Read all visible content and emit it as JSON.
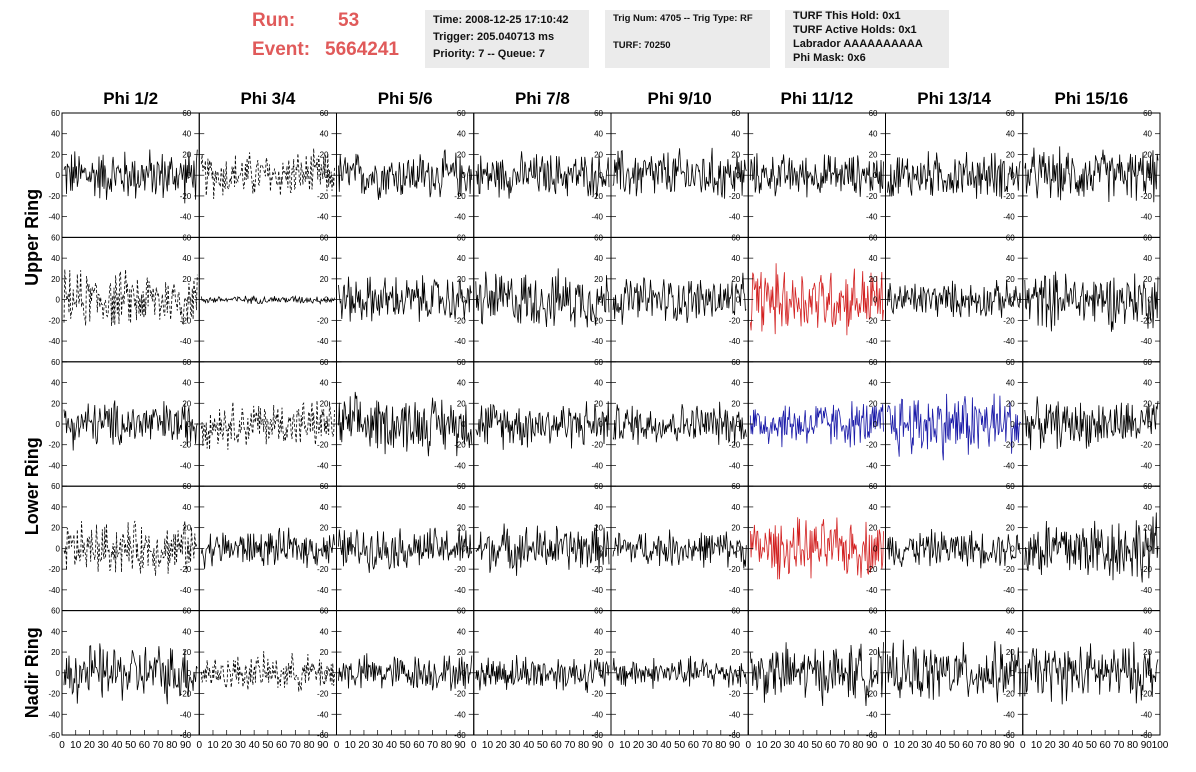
{
  "header": {
    "run_label": "Run:",
    "run_value": "53",
    "event_label": "Event:",
    "event_value": "5664241",
    "time": "Time: 2008-12-25 17:10:42",
    "trigger": "Trigger: 205.040713 ms",
    "priority": "Priority: 7 -- Queue: 7",
    "trig_num": "Trig Num: 4705 -- Trig Type: RF",
    "turf": "TURF: 70250",
    "turf_hold": "TURF This Hold: 0x1",
    "turf_active": "TURF Active Holds: 0x1",
    "labrador": "Labrador AAAAAAAAAA",
    "phi_mask": "Phi Mask: 0x6"
  },
  "colors": {
    "black": "#000000",
    "red": "#d22020",
    "blue": "#1a1aa8",
    "text_red": "#e05a5a"
  },
  "chart_data": {
    "type": "line",
    "phi_labels": [
      "Phi 1/2",
      "Phi 3/4",
      "Phi 5/6",
      "Phi 7/8",
      "Phi 9/10",
      "Phi 11/12",
      "Phi 13/14",
      "Phi 15/16"
    ],
    "ring_labels": [
      {
        "text": "Upper Ring",
        "rows": [
          0,
          1
        ]
      },
      {
        "text": "Lower Ring",
        "rows": [
          2,
          3
        ]
      },
      {
        "text": "Nadir Ring",
        "rows": [
          4
        ]
      }
    ],
    "ylim": [
      -60,
      60
    ],
    "xlim": [
      0,
      100
    ],
    "y_ticks": [
      -60,
      -40,
      -20,
      0,
      20,
      40,
      60
    ],
    "x_ticks": [
      0,
      10,
      20,
      30,
      40,
      50,
      60,
      70,
      80,
      90,
      100
    ],
    "grid": false,
    "panels": [
      [
        {
          "amp": 20,
          "style": "solid",
          "color": "black"
        },
        {
          "amp": 18,
          "style": "dashed",
          "color": "black"
        },
        {
          "amp": 18,
          "style": "solid",
          "color": "black"
        },
        {
          "amp": 17,
          "style": "solid",
          "color": "black"
        },
        {
          "amp": 20,
          "style": "solid",
          "color": "black"
        },
        {
          "amp": 16,
          "style": "solid",
          "color": "black"
        },
        {
          "amp": 18,
          "style": "solid",
          "color": "black"
        },
        {
          "amp": 20,
          "style": "solid",
          "color": "black"
        }
      ],
      [
        {
          "amp": 22,
          "style": "dashed",
          "color": "black"
        },
        {
          "amp": 3,
          "style": "solid",
          "color": "black"
        },
        {
          "amp": 18,
          "style": "solid",
          "color": "black"
        },
        {
          "amp": 22,
          "style": "solid",
          "color": "black"
        },
        {
          "amp": 18,
          "style": "solid",
          "color": "black"
        },
        {
          "amp": 26,
          "style": "solid",
          "color": "red"
        },
        {
          "amp": 14,
          "style": "solid",
          "color": "black"
        },
        {
          "amp": 22,
          "style": "solid",
          "color": "black"
        }
      ],
      [
        {
          "amp": 18,
          "style": "solid",
          "color": "black"
        },
        {
          "amp": 18,
          "style": "dashed",
          "color": "black"
        },
        {
          "amp": 22,
          "style": "solid",
          "color": "black"
        },
        {
          "amp": 18,
          "style": "solid",
          "color": "black"
        },
        {
          "amp": 16,
          "style": "solid",
          "color": "black"
        },
        {
          "amp": 18,
          "style": "solid",
          "color": "blue"
        },
        {
          "amp": 26,
          "style": "solid",
          "color": "blue"
        },
        {
          "amp": 18,
          "style": "solid",
          "color": "black"
        }
      ],
      [
        {
          "amp": 20,
          "style": "dashed",
          "color": "black"
        },
        {
          "amp": 14,
          "style": "solid",
          "color": "black"
        },
        {
          "amp": 16,
          "style": "solid",
          "color": "black"
        },
        {
          "amp": 18,
          "style": "solid",
          "color": "black"
        },
        {
          "amp": 14,
          "style": "solid",
          "color": "black"
        },
        {
          "amp": 22,
          "style": "solid",
          "color": "red"
        },
        {
          "amp": 14,
          "style": "solid",
          "color": "black"
        },
        {
          "amp": 26,
          "style": "solid",
          "color": "black"
        }
      ],
      [
        {
          "amp": 22,
          "style": "solid",
          "color": "black"
        },
        {
          "amp": 14,
          "style": "dashed",
          "color": "black"
        },
        {
          "amp": 14,
          "style": "solid",
          "color": "black"
        },
        {
          "amp": 14,
          "style": "solid",
          "color": "black"
        },
        {
          "amp": 12,
          "style": "solid",
          "color": "black"
        },
        {
          "amp": 22,
          "style": "solid",
          "color": "black"
        },
        {
          "amp": 22,
          "style": "solid",
          "color": "black"
        },
        {
          "amp": 22,
          "style": "solid",
          "color": "black"
        }
      ]
    ]
  }
}
